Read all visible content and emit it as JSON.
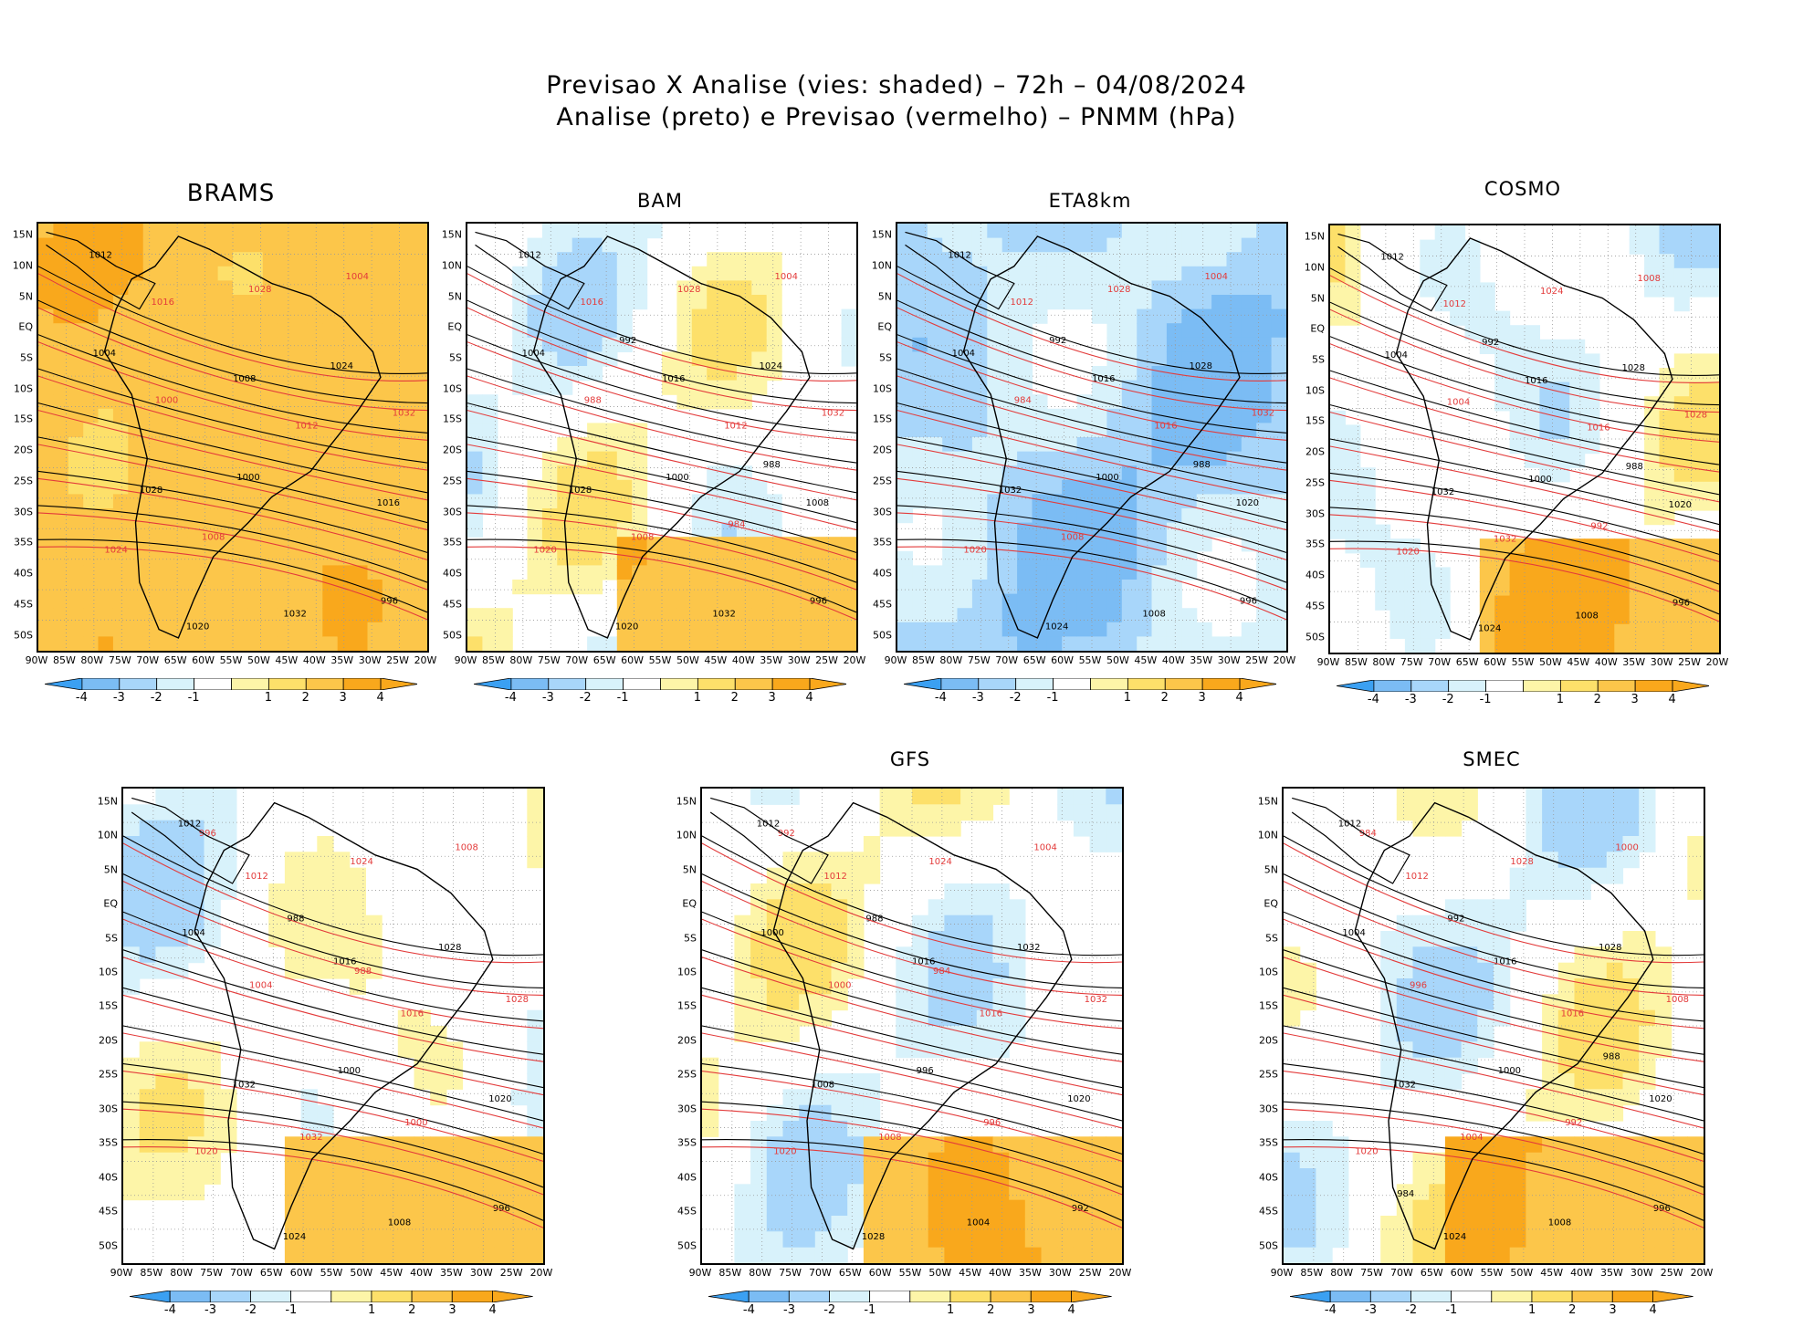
{
  "title_line1": "Previsao X Analise (vies: shaded) – 72h – 04/08/2024",
  "title_line2": "Analise (preto) e Previsao (vermelho) – PNMM (hPa)",
  "lat_ticks": [
    "15N",
    "10N",
    "5N",
    "EQ",
    "5S",
    "10S",
    "15S",
    "20S",
    "25S",
    "30S",
    "35S",
    "40S",
    "45S",
    "50S"
  ],
  "lon_ticks": [
    "90W",
    "85W",
    "80W",
    "75W",
    "70W",
    "65W",
    "60W",
    "55W",
    "50W",
    "45W",
    "40W",
    "35W",
    "30W",
    "25W",
    "20W"
  ],
  "colorbar": {
    "labels": [
      "-4",
      "-3",
      "-2",
      "-1",
      "1",
      "2",
      "3",
      "4"
    ],
    "colors": [
      "#3ba0f2",
      "#7bbcf4",
      "#a8d6fa",
      "#d8f2fb",
      "#ffffff",
      "#fdf5a8",
      "#fde06a",
      "#fcc64a",
      "#f9a81c"
    ]
  },
  "chart_data": [
    {
      "type": "heatmap",
      "title": "BRAMS",
      "bias_sign": "positive",
      "isobar_labels_black": [
        "1012",
        "1008",
        "1016",
        "1020",
        "1024",
        "1028",
        "1032",
        "1004",
        "1000",
        "996"
      ],
      "isobar_labels_red": [
        "1016",
        "1012",
        "1024",
        "1028",
        "1032",
        "1008",
        "1004",
        "1000"
      ]
    },
    {
      "type": "heatmap",
      "title": "BAM",
      "bias_sign": "mixed",
      "isobar_labels_black": [
        "1012",
        "1016",
        "1008",
        "1020",
        "1024",
        "1028",
        "1032",
        "1004",
        "1000",
        "996",
        "992",
        "988"
      ],
      "isobar_labels_red": [
        "1016",
        "1012",
        "1020",
        "1028",
        "1032",
        "1008",
        "1004",
        "988",
        "984"
      ]
    },
    {
      "type": "heatmap",
      "title": "ETA8km",
      "bias_sign": "negative",
      "isobar_labels_black": [
        "1012",
        "1016",
        "1020",
        "1024",
        "1028",
        "1032",
        "1008",
        "1004",
        "1000",
        "996",
        "992",
        "988"
      ],
      "isobar_labels_red": [
        "1012",
        "1016",
        "1020",
        "1028",
        "1032",
        "1008",
        "1004",
        "984"
      ]
    },
    {
      "type": "heatmap",
      "title": "COSMO",
      "bias_sign": "mixed",
      "isobar_labels_black": [
        "1012",
        "1016",
        "1020",
        "1024",
        "1028",
        "1032",
        "1008",
        "1004",
        "1000",
        "996",
        "992",
        "988"
      ],
      "isobar_labels_red": [
        "1012",
        "1016",
        "1020",
        "1024",
        "1028",
        "1032",
        "1008",
        "1004",
        "992"
      ]
    },
    {
      "type": "heatmap",
      "title": "",
      "bias_sign": "mixed",
      "isobar_labels_black": [
        "1012",
        "1016",
        "1020",
        "1024",
        "1028",
        "1032",
        "1008",
        "1004",
        "1000",
        "996",
        "988"
      ],
      "isobar_labels_red": [
        "1012",
        "1016",
        "1020",
        "1024",
        "1028",
        "1032",
        "1008",
        "1004",
        "1000",
        "996",
        "988"
      ]
    },
    {
      "type": "heatmap",
      "title": "GFS",
      "bias_sign": "mixed",
      "isobar_labels_black": [
        "1012",
        "1016",
        "1020",
        "1028",
        "1032",
        "1008",
        "1004",
        "1000",
        "996",
        "992",
        "988"
      ],
      "isobar_labels_red": [
        "1012",
        "1016",
        "1020",
        "1024",
        "1032",
        "1008",
        "1004",
        "1000",
        "996",
        "992",
        "984"
      ]
    },
    {
      "type": "heatmap",
      "title": "SMEC",
      "bias_sign": "mixed",
      "isobar_labels_black": [
        "1012",
        "1016",
        "1020",
        "1024",
        "1028",
        "1032",
        "1008",
        "1004",
        "1000",
        "996",
        "992",
        "988",
        "984"
      ],
      "isobar_labels_red": [
        "1012",
        "1016",
        "1020",
        "1028",
        "1008",
        "1004",
        "1000",
        "996",
        "992",
        "984"
      ]
    }
  ]
}
